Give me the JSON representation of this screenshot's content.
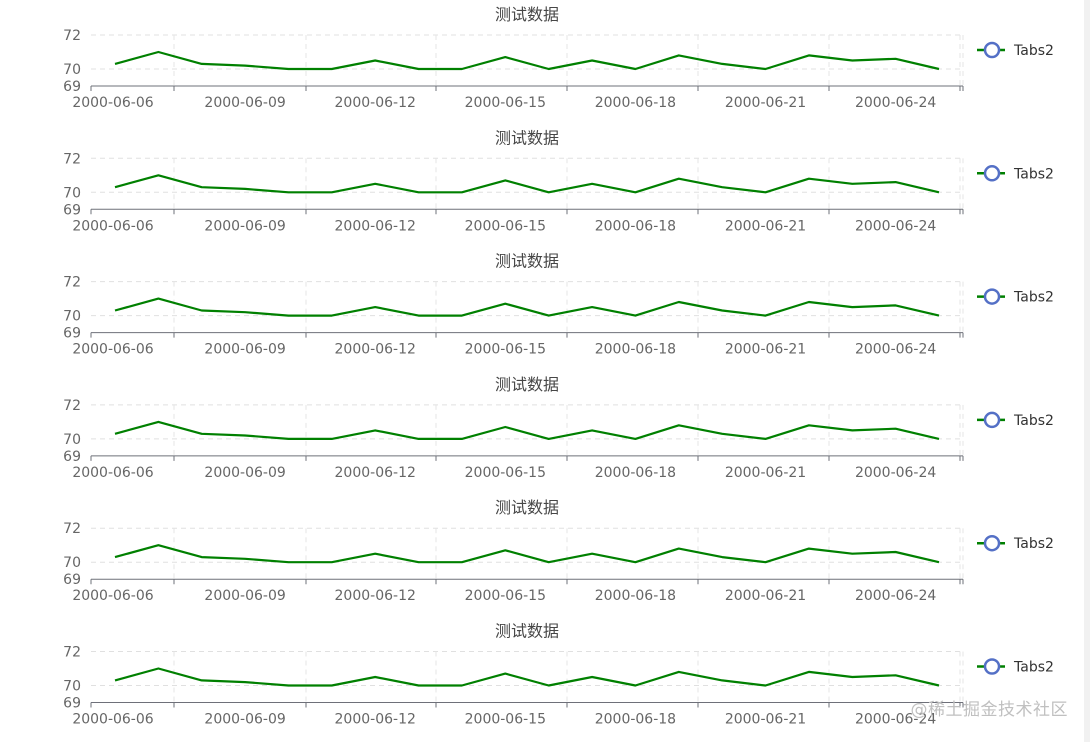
{
  "watermark": "@稀土掘金技术社区",
  "chart_data": [
    {
      "type": "line",
      "title": "测试数据",
      "x": [
        "2000-06-06",
        "2000-06-07",
        "2000-06-08",
        "2000-06-09",
        "2000-06-10",
        "2000-06-11",
        "2000-06-12",
        "2000-06-13",
        "2000-06-14",
        "2000-06-15",
        "2000-06-16",
        "2000-06-17",
        "2000-06-18",
        "2000-06-19",
        "2000-06-20",
        "2000-06-21",
        "2000-06-22",
        "2000-06-23",
        "2000-06-24",
        "2000-06-25"
      ],
      "x_tick_labels": [
        "2000-06-06",
        "2000-06-09",
        "2000-06-12",
        "2000-06-15",
        "2000-06-18",
        "2000-06-21",
        "2000-06-24"
      ],
      "series": [
        {
          "name": "Tabs2",
          "values": [
            70.3,
            71.0,
            70.3,
            70.2,
            70.0,
            70.0,
            70.5,
            70.0,
            70.0,
            70.7,
            70.0,
            70.5,
            70.0,
            70.8,
            70.3,
            70.0,
            70.8,
            70.5,
            70.6,
            70.0
          ]
        }
      ],
      "ylim": [
        69,
        72
      ],
      "y_tick_labels": [
        "69",
        "70",
        "72"
      ],
      "grid": true,
      "legend": "right",
      "colors": {
        "line": "#008000",
        "legend_marker": "#5470c6"
      }
    },
    {
      "type": "line",
      "title": "测试数据",
      "x": [
        "2000-06-06",
        "2000-06-07",
        "2000-06-08",
        "2000-06-09",
        "2000-06-10",
        "2000-06-11",
        "2000-06-12",
        "2000-06-13",
        "2000-06-14",
        "2000-06-15",
        "2000-06-16",
        "2000-06-17",
        "2000-06-18",
        "2000-06-19",
        "2000-06-20",
        "2000-06-21",
        "2000-06-22",
        "2000-06-23",
        "2000-06-24",
        "2000-06-25"
      ],
      "x_tick_labels": [
        "2000-06-06",
        "2000-06-09",
        "2000-06-12",
        "2000-06-15",
        "2000-06-18",
        "2000-06-21",
        "2000-06-24"
      ],
      "series": [
        {
          "name": "Tabs2",
          "values": [
            70.3,
            71.0,
            70.3,
            70.2,
            70.0,
            70.0,
            70.5,
            70.0,
            70.0,
            70.7,
            70.0,
            70.5,
            70.0,
            70.8,
            70.3,
            70.0,
            70.8,
            70.5,
            70.6,
            70.0
          ]
        }
      ],
      "ylim": [
        69,
        72
      ],
      "y_tick_labels": [
        "69",
        "70",
        "72"
      ],
      "grid": true,
      "legend": "right",
      "colors": {
        "line": "#008000",
        "legend_marker": "#5470c6"
      }
    },
    {
      "type": "line",
      "title": "测试数据",
      "x": [
        "2000-06-06",
        "2000-06-07",
        "2000-06-08",
        "2000-06-09",
        "2000-06-10",
        "2000-06-11",
        "2000-06-12",
        "2000-06-13",
        "2000-06-14",
        "2000-06-15",
        "2000-06-16",
        "2000-06-17",
        "2000-06-18",
        "2000-06-19",
        "2000-06-20",
        "2000-06-21",
        "2000-06-22",
        "2000-06-23",
        "2000-06-24",
        "2000-06-25"
      ],
      "x_tick_labels": [
        "2000-06-06",
        "2000-06-09",
        "2000-06-12",
        "2000-06-15",
        "2000-06-18",
        "2000-06-21",
        "2000-06-24"
      ],
      "series": [
        {
          "name": "Tabs2",
          "values": [
            70.3,
            71.0,
            70.3,
            70.2,
            70.0,
            70.0,
            70.5,
            70.0,
            70.0,
            70.7,
            70.0,
            70.5,
            70.0,
            70.8,
            70.3,
            70.0,
            70.8,
            70.5,
            70.6,
            70.0
          ]
        }
      ],
      "ylim": [
        69,
        72
      ],
      "y_tick_labels": [
        "69",
        "70",
        "72"
      ],
      "grid": true,
      "legend": "right",
      "colors": {
        "line": "#008000",
        "legend_marker": "#5470c6"
      }
    },
    {
      "type": "line",
      "title": "测试数据",
      "x": [
        "2000-06-06",
        "2000-06-07",
        "2000-06-08",
        "2000-06-09",
        "2000-06-10",
        "2000-06-11",
        "2000-06-12",
        "2000-06-13",
        "2000-06-14",
        "2000-06-15",
        "2000-06-16",
        "2000-06-17",
        "2000-06-18",
        "2000-06-19",
        "2000-06-20",
        "2000-06-21",
        "2000-06-22",
        "2000-06-23",
        "2000-06-24",
        "2000-06-25"
      ],
      "x_tick_labels": [
        "2000-06-06",
        "2000-06-09",
        "2000-06-12",
        "2000-06-15",
        "2000-06-18",
        "2000-06-21",
        "2000-06-24"
      ],
      "series": [
        {
          "name": "Tabs2",
          "values": [
            70.3,
            71.0,
            70.3,
            70.2,
            70.0,
            70.0,
            70.5,
            70.0,
            70.0,
            70.7,
            70.0,
            70.5,
            70.0,
            70.8,
            70.3,
            70.0,
            70.8,
            70.5,
            70.6,
            70.0
          ]
        }
      ],
      "ylim": [
        69,
        72
      ],
      "y_tick_labels": [
        "69",
        "70",
        "72"
      ],
      "grid": true,
      "legend": "right",
      "colors": {
        "line": "#008000",
        "legend_marker": "#5470c6"
      }
    },
    {
      "type": "line",
      "title": "测试数据",
      "x": [
        "2000-06-06",
        "2000-06-07",
        "2000-06-08",
        "2000-06-09",
        "2000-06-10",
        "2000-06-11",
        "2000-06-12",
        "2000-06-13",
        "2000-06-14",
        "2000-06-15",
        "2000-06-16",
        "2000-06-17",
        "2000-06-18",
        "2000-06-19",
        "2000-06-20",
        "2000-06-21",
        "2000-06-22",
        "2000-06-23",
        "2000-06-24",
        "2000-06-25"
      ],
      "x_tick_labels": [
        "2000-06-06",
        "2000-06-09",
        "2000-06-12",
        "2000-06-15",
        "2000-06-18",
        "2000-06-21",
        "2000-06-24"
      ],
      "series": [
        {
          "name": "Tabs2",
          "values": [
            70.3,
            71.0,
            70.3,
            70.2,
            70.0,
            70.0,
            70.5,
            70.0,
            70.0,
            70.7,
            70.0,
            70.5,
            70.0,
            70.8,
            70.3,
            70.0,
            70.8,
            70.5,
            70.6,
            70.0
          ]
        }
      ],
      "ylim": [
        69,
        72
      ],
      "y_tick_labels": [
        "69",
        "70",
        "72"
      ],
      "grid": true,
      "legend": "right",
      "colors": {
        "line": "#008000",
        "legend_marker": "#5470c6"
      }
    },
    {
      "type": "line",
      "title": "测试数据",
      "x": [
        "2000-06-06",
        "2000-06-07",
        "2000-06-08",
        "2000-06-09",
        "2000-06-10",
        "2000-06-11",
        "2000-06-12",
        "2000-06-13",
        "2000-06-14",
        "2000-06-15",
        "2000-06-16",
        "2000-06-17",
        "2000-06-18",
        "2000-06-19",
        "2000-06-20",
        "2000-06-21",
        "2000-06-22",
        "2000-06-23",
        "2000-06-24",
        "2000-06-25"
      ],
      "x_tick_labels": [
        "2000-06-06",
        "2000-06-09",
        "2000-06-12",
        "2000-06-15",
        "2000-06-18",
        "2000-06-21",
        "2000-06-24"
      ],
      "series": [
        {
          "name": "Tabs2",
          "values": [
            70.3,
            71.0,
            70.3,
            70.2,
            70.0,
            70.0,
            70.5,
            70.0,
            70.0,
            70.7,
            70.0,
            70.5,
            70.0,
            70.8,
            70.3,
            70.0,
            70.8,
            70.5,
            70.6,
            70.0
          ]
        }
      ],
      "ylim": [
        69,
        72
      ],
      "y_tick_labels": [
        "69",
        "70",
        "72"
      ],
      "grid": true,
      "legend": "right",
      "colors": {
        "line": "#008000",
        "legend_marker": "#5470c6"
      }
    }
  ]
}
